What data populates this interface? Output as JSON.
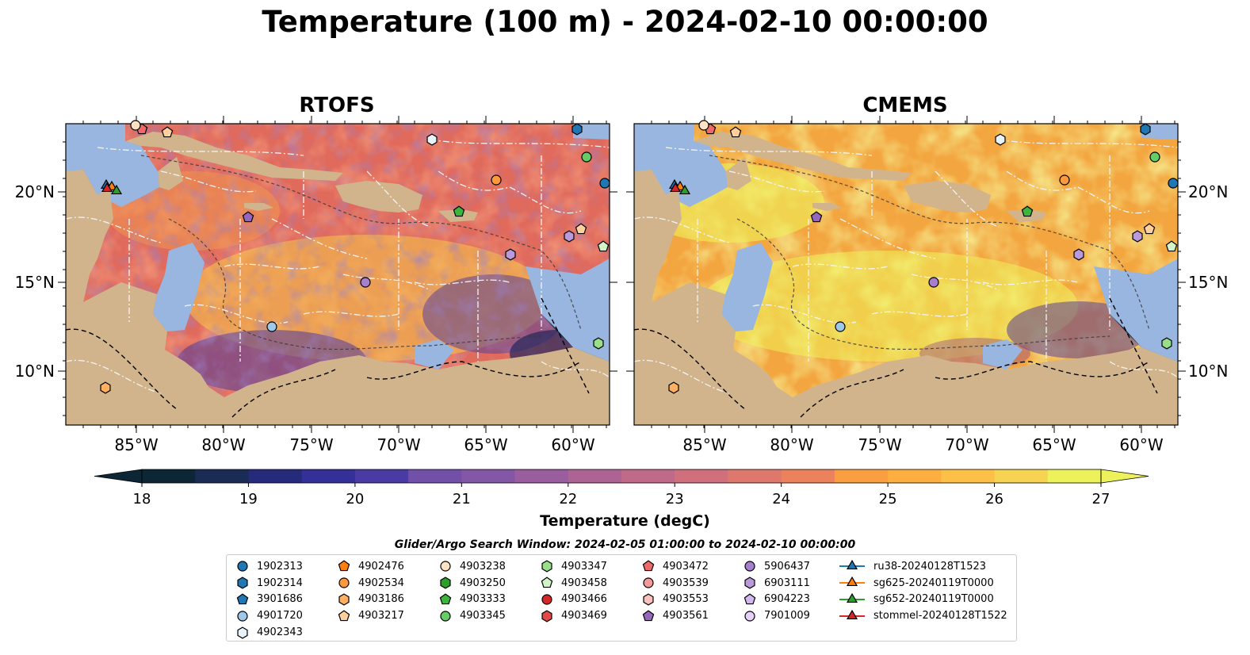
{
  "title": "Temperature (100 m) - 2024-02-10 00:00:00",
  "panels": [
    {
      "title": "RTOFS"
    },
    {
      "title": "CMEMS"
    }
  ],
  "axes": {
    "lat_labels": [
      "20°N",
      "15°N",
      "10°N"
    ],
    "lon_labels": [
      "85°W",
      "80°W",
      "75°W",
      "70°W",
      "65°W",
      "60°W"
    ]
  },
  "colorbar": {
    "label": "Temperature (degC)",
    "min": 18,
    "max": 27,
    "step": 0.5,
    "ticks": [
      "18",
      "19",
      "20",
      "21",
      "22",
      "23",
      "24",
      "25",
      "26",
      "27"
    ],
    "extend": "both",
    "colormap": "thermal"
  },
  "search_window": "Glider/Argo Search Window: 2024-02-05 01:00:00 to 2024-02-10 00:00:00",
  "legend": {
    "columns": [
      [
        {
          "label": "1902313",
          "marker": "circle",
          "color": "#1f77b4"
        },
        {
          "label": "1902314",
          "marker": "hexagon",
          "color": "#1f77b4"
        },
        {
          "label": "3901686",
          "marker": "pentagon",
          "color": "#1f77b4"
        },
        {
          "label": "4901720",
          "marker": "circle",
          "color": "#9ec8e8"
        },
        {
          "label": "4902343",
          "marker": "hexagon",
          "color": "#e8f4fc"
        }
      ],
      [
        {
          "label": "4902476",
          "marker": "pentagon",
          "color": "#ff7f0e"
        },
        {
          "label": "4902534",
          "marker": "circle",
          "color": "#ff9a3c"
        },
        {
          "label": "4903186",
          "marker": "hexagon",
          "color": "#ffb060"
        },
        {
          "label": "4903217",
          "marker": "pentagon",
          "color": "#ffcf9c"
        }
      ],
      [
        {
          "label": "4903238",
          "marker": "circle",
          "color": "#ffe2c4"
        },
        {
          "label": "4903250",
          "marker": "hexagon",
          "color": "#2ca02c"
        },
        {
          "label": "4903333",
          "marker": "pentagon",
          "color": "#3cb53c"
        },
        {
          "label": "4903345",
          "marker": "circle",
          "color": "#66cc66"
        }
      ],
      [
        {
          "label": "4903347",
          "marker": "hexagon",
          "color": "#98df8a"
        },
        {
          "label": "4903458",
          "marker": "pentagon",
          "color": "#d2f5c8"
        },
        {
          "label": "4903466",
          "marker": "circle",
          "color": "#d62728"
        },
        {
          "label": "4903469",
          "marker": "hexagon",
          "color": "#e24a4a"
        }
      ],
      [
        {
          "label": "4903472",
          "marker": "pentagon",
          "color": "#ee6a6a"
        },
        {
          "label": "4903539",
          "marker": "circle",
          "color": "#f59a9a"
        },
        {
          "label": "4903553",
          "marker": "hexagon",
          "color": "#f9c0c0"
        },
        {
          "label": "4903561",
          "marker": "pentagon",
          "color": "#9467bd"
        }
      ],
      [
        {
          "label": "5906437",
          "marker": "circle",
          "color": "#a77fcf"
        },
        {
          "label": "6903111",
          "marker": "hexagon",
          "color": "#bb99dd"
        },
        {
          "label": "6904223",
          "marker": "pentagon",
          "color": "#d2b8ec"
        },
        {
          "label": "7901009",
          "marker": "circle",
          "color": "#e6d2f8"
        }
      ],
      [
        {
          "label": "ru38-20240128T1523",
          "marker": "triangle-line",
          "color": "#1f77b4"
        },
        {
          "label": "sg625-20240119T0000",
          "marker": "triangle-line",
          "color": "#ff7f0e"
        },
        {
          "label": "sg652-20240119T0000",
          "marker": "triangle-line",
          "color": "#2ca02c"
        },
        {
          "label": "stommel-20240128T1522",
          "marker": "triangle-line",
          "color": "#d62728"
        }
      ]
    ]
  },
  "map_colors": {
    "land": "#d2b48c",
    "shallow_water": "#98b6df",
    "deep_water": "#0c2636"
  }
}
